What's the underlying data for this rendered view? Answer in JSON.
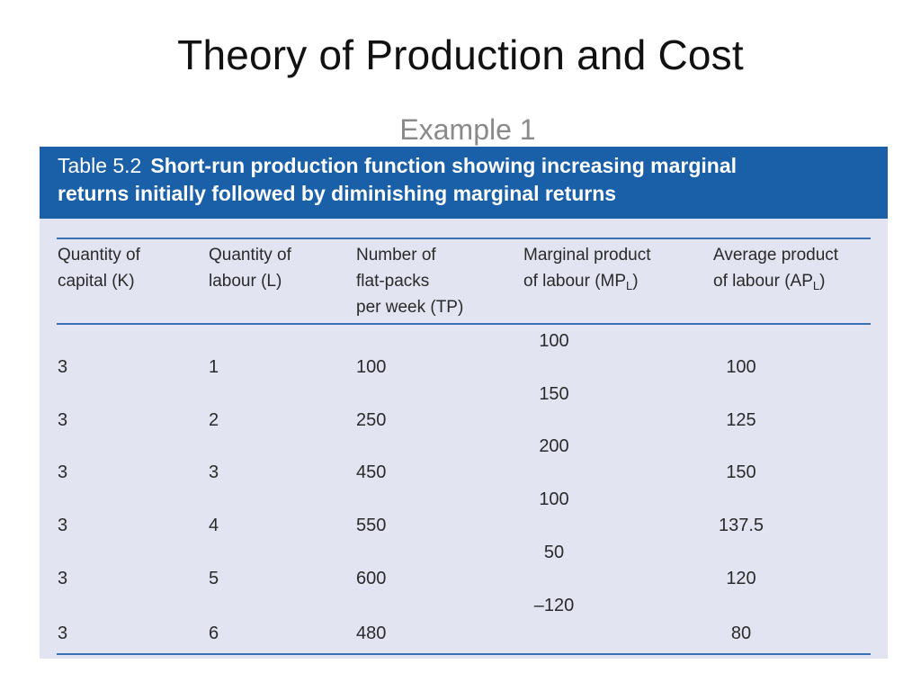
{
  "slide": {
    "title": "Theory of Production and Cost",
    "subtitle": "Example 1"
  },
  "table": {
    "caption_number": "Table 5.2",
    "caption_line1": "Short-run production function showing increasing marginal",
    "caption_line2": "returns initially followed by diminishing marginal returns",
    "headers": {
      "capital": [
        "Quantity of",
        "capital (K)"
      ],
      "labour": [
        "Quantity of",
        "labour (L)"
      ],
      "output": [
        "Number of",
        "flat-packs",
        "per week (TP)"
      ],
      "marginal": [
        "Marginal product",
        "of labour (MP",
        "L",
        ")"
      ],
      "average": [
        "Average product",
        "of labour (AP",
        "L",
        ")"
      ]
    },
    "rows": [
      {
        "k": "3",
        "l": "1",
        "tp": "100",
        "ap": "100"
      },
      {
        "k": "3",
        "l": "2",
        "tp": "250",
        "ap": "125"
      },
      {
        "k": "3",
        "l": "3",
        "tp": "450",
        "ap": "150"
      },
      {
        "k": "3",
        "l": "4",
        "tp": "550",
        "ap": "137.5"
      },
      {
        "k": "3",
        "l": "5",
        "tp": "600",
        "ap": "120"
      },
      {
        "k": "3",
        "l": "6",
        "tp": "480",
        "ap": "80"
      }
    ],
    "marginal_products": [
      "100",
      "150",
      "200",
      "100",
      "50",
      "–120"
    ]
  },
  "colors": {
    "header_band": "#1a60a8",
    "table_background": "#e3e4f1",
    "rule": "#3a72b6"
  }
}
